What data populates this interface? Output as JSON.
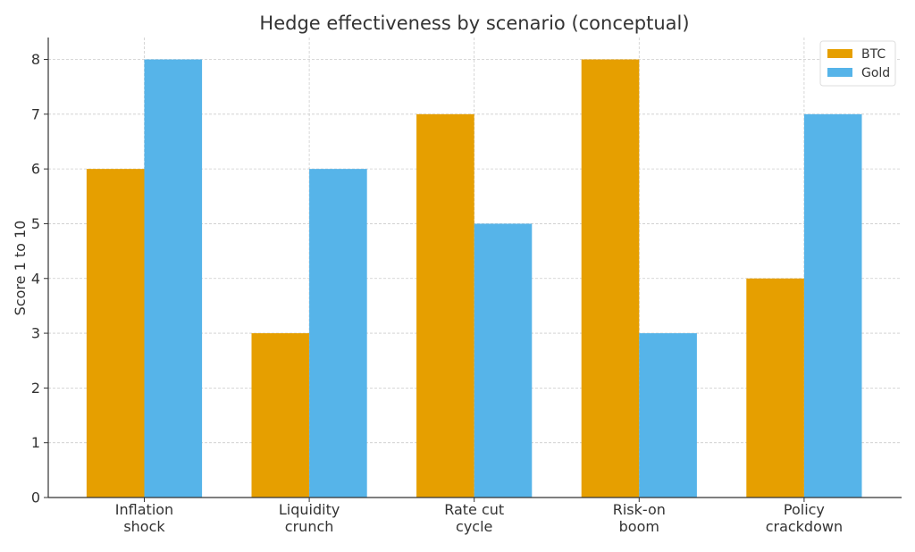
{
  "chart_data": {
    "type": "bar",
    "title": "Hedge effectiveness by scenario (conceptual)",
    "xlabel": "",
    "ylabel": "Score 1 to 10",
    "categories": [
      [
        "Inflation",
        "shock"
      ],
      [
        "Liquidity",
        "crunch"
      ],
      [
        "Rate cut",
        "cycle"
      ],
      [
        "Risk-on",
        "boom"
      ],
      [
        "Policy",
        "crackdown"
      ]
    ],
    "series": [
      {
        "name": "BTC",
        "values": [
          6,
          3,
          7,
          8,
          4
        ],
        "color": "#E69F00"
      },
      {
        "name": "Gold",
        "values": [
          8,
          6,
          5,
          3,
          7
        ],
        "color": "#56B4E9"
      }
    ],
    "ylim": [
      0,
      8.4
    ],
    "yticks": [
      0,
      1,
      2,
      3,
      4,
      5,
      6,
      7,
      8
    ],
    "grid": true,
    "legend_position": "top-right"
  }
}
